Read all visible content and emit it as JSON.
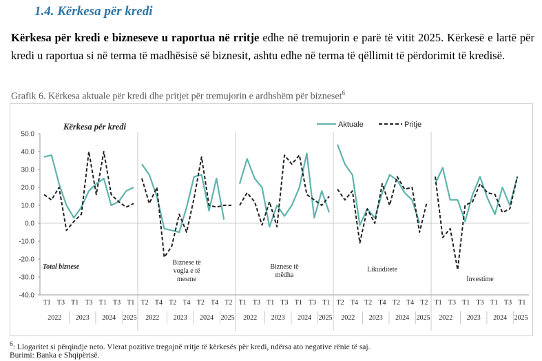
{
  "section": {
    "number": "1.4.",
    "title": "Kërkesa për kredi"
  },
  "paragraph": {
    "bold": "Kërkesa për kredi e bizneseve u raportua në rritje",
    "rest": " edhe në tremujorin e parë të vitit 2025. Kërkesë e lartë për kredi u raportua si në terma të madhësisë së biznesit, ashtu edhe në terma të qëllimit të përdorimit të kredisë."
  },
  "caption": {
    "text": "Grafik 6. Kërkesa aktuale për kredi dhe pritjet për tremujorin e ardhshëm për bizneset",
    "sup": "6"
  },
  "footnote": {
    "sup": "6",
    "text": ": Llogaritet si përqindje neto. Vlerat pozitive tregojnë rritje të kërkesës për kredi, ndërsa ato negative rënie të saj."
  },
  "source": "Burimi: Banka e Shqipërisë.",
  "colors": {
    "actual": "#5fb3ad",
    "expected": "#222222",
    "axis": "#999999",
    "section_title": "#2e74a6"
  },
  "chart_data": {
    "type": "line",
    "title": "Kërkesa për kredi",
    "ylim": [
      -40,
      50
    ],
    "yticks": [
      "50.0",
      "40.0",
      "30.0",
      "20.0",
      "10.0",
      "0.0",
      "-10.0",
      "-20.0",
      "-30.0",
      "-40.0"
    ],
    "legend": {
      "actual": "Aktuale",
      "expected": "Pritje",
      "placement": "top-right"
    },
    "panels": [
      {
        "label": "Total biznese",
        "ticks": [
          "T1",
          "T3",
          "T1",
          "T3",
          "T1",
          "T3",
          "T1"
        ],
        "years": [
          "2022",
          "2023",
          "2024",
          "2025"
        ],
        "x": [
          "2022T1",
          "2022T2",
          "2022T3",
          "2022T4",
          "2023T1",
          "2023T2",
          "2023T3",
          "2023T4",
          "2024T1",
          "2024T2",
          "2024T3",
          "2024T4",
          "2025T1"
        ],
        "actual": [
          37,
          38,
          22,
          10,
          3,
          9,
          18,
          22,
          25,
          10,
          12,
          18,
          20
        ],
        "expected": [
          16,
          13,
          20,
          -4,
          1,
          5,
          40,
          16,
          40,
          16,
          12,
          9,
          11
        ]
      },
      {
        "label": "Biznese të vogla e të mesme",
        "ticks": [
          "T2",
          "T4",
          "T2",
          "T4",
          "T2",
          "T4",
          "T2"
        ],
        "years": [
          "2022",
          "2023",
          "2024",
          "2025"
        ],
        "x": [
          "2022T2",
          "2022T3",
          "2022T4",
          "2023T1",
          "2023T2",
          "2023T3",
          "2023T4",
          "2024T1",
          "2024T2",
          "2024T3",
          "2024T4",
          "2025T1",
          "2025T2"
        ],
        "actual": [
          33,
          27,
          15,
          -3,
          -4,
          -5,
          9,
          26,
          27,
          7,
          25,
          2,
          null
        ],
        "expected": [
          25,
          11,
          20,
          -19,
          -13,
          5,
          -5,
          14,
          37,
          10,
          9,
          10,
          10
        ]
      },
      {
        "label": "Biznese të mëdha",
        "ticks": [
          "T1",
          "T3",
          "T1",
          "T3",
          "T1",
          "T3",
          "T1"
        ],
        "years": [
          "2022",
          "2023",
          "2024",
          "2025"
        ],
        "x": [
          "2022T1",
          "2022T2",
          "2022T3",
          "2022T4",
          "2023T1",
          "2023T2",
          "2023T3",
          "2023T4",
          "2024T1",
          "2024T2",
          "2024T3",
          "2024T4",
          "2025T1"
        ],
        "actual": [
          22,
          36,
          25,
          20,
          -2,
          10,
          4,
          10,
          20,
          39,
          3,
          18,
          6
        ],
        "expected": [
          10,
          17,
          12,
          -1,
          12,
          -2,
          38,
          33,
          38,
          16,
          13,
          10,
          15
        ]
      },
      {
        "label": "Likuiditete",
        "ticks": [
          "T2",
          "T4",
          "T2",
          "T4",
          "T2",
          "T4",
          "T2"
        ],
        "years": [
          "2022",
          "2023",
          "2024",
          "2025"
        ],
        "x": [
          "2022T2",
          "2022T3",
          "2022T4",
          "2023T1",
          "2023T2",
          "2023T3",
          "2023T4",
          "2024T1",
          "2024T2",
          "2024T3",
          "2024T4",
          "2025T1",
          "2025T2"
        ],
        "actual": [
          44,
          33,
          27,
          -1,
          8,
          3,
          17,
          27,
          24,
          17,
          13,
          0,
          null
        ],
        "expected": [
          19,
          13,
          18,
          -11,
          8,
          0,
          22,
          10,
          26,
          19,
          20,
          -5,
          12
        ]
      },
      {
        "label": "Investime",
        "ticks": [
          "T1",
          "T3",
          "T1",
          "T3",
          "T1",
          "T3",
          "T1"
        ],
        "years": [
          "2022",
          "2023",
          "2024",
          "2025"
        ],
        "x": [
          "2022T1",
          "2022T2",
          "2022T3",
          "2022T4",
          "2023T1",
          "2023T2",
          "2023T3",
          "2023T4",
          "2024T1",
          "2024T2",
          "2024T3",
          "2024T4",
          "2025T1"
        ],
        "actual": [
          22,
          31,
          13,
          13,
          1,
          16,
          26,
          14,
          5,
          20,
          10,
          26,
          null
        ],
        "expected": [
          26,
          -8,
          -3,
          -26,
          10,
          12,
          22,
          17,
          16,
          6,
          8,
          26,
          null
        ]
      }
    ]
  }
}
